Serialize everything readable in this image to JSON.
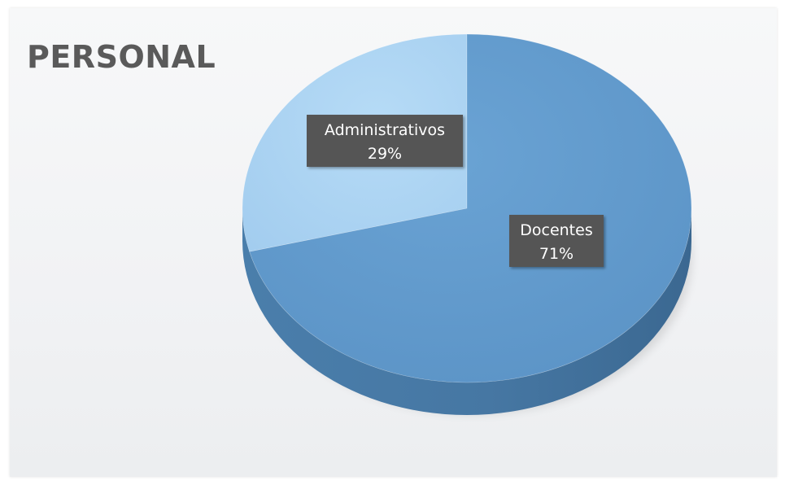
{
  "chart_data": {
    "type": "pie",
    "title": "PERSONAL",
    "categories": [
      "Administrativos",
      "Docentes"
    ],
    "values": [
      29,
      71
    ],
    "labels": [
      "29%",
      "71%"
    ],
    "colors": {
      "Administrativos": "#a9d2f2",
      "Docentes": "#5b95c8",
      "side_dark": "#3f6d97",
      "label_bg": "#555555",
      "label_text": "#ffffff"
    },
    "style": "3d",
    "legend": "none"
  }
}
